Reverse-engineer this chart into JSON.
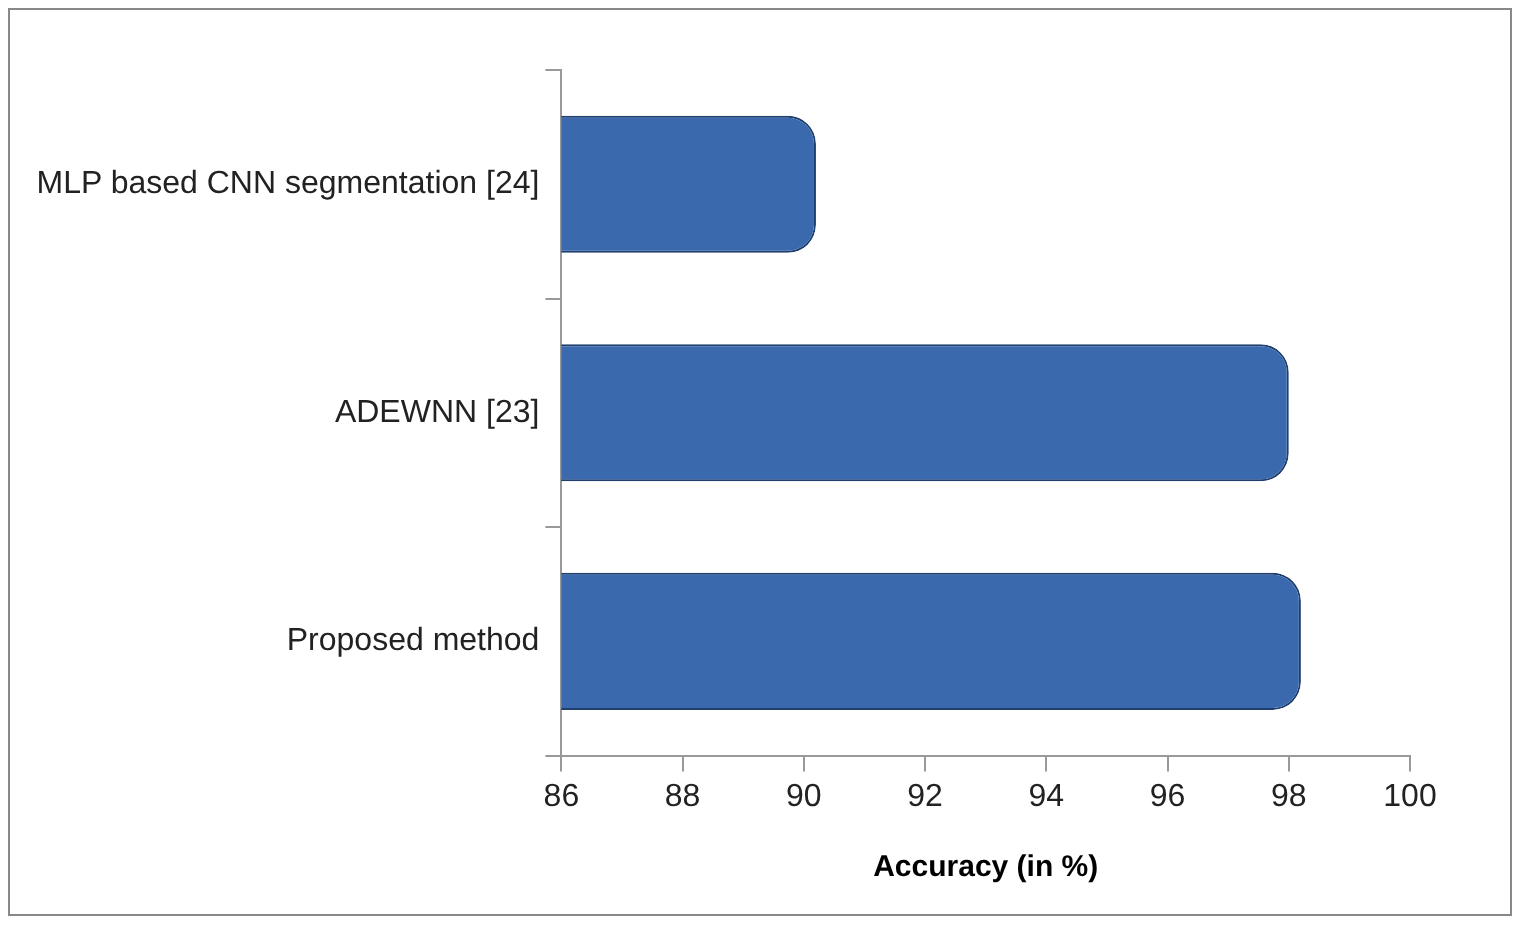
{
  "chart_data": {
    "type": "bar",
    "orientation": "horizontal",
    "xlabel": "Accuracy (in %)",
    "categories": [
      "MLP based CNN segmentation [24]",
      "ADEWNN [23]",
      "Proposed method"
    ],
    "values": [
      90.2,
      98.0,
      98.2
    ],
    "color": "#3a6aad",
    "xlim": [
      86,
      100
    ],
    "xticks": [
      86,
      88,
      90,
      92,
      94,
      96,
      98,
      100
    ],
    "grid": false,
    "legend": false
  }
}
